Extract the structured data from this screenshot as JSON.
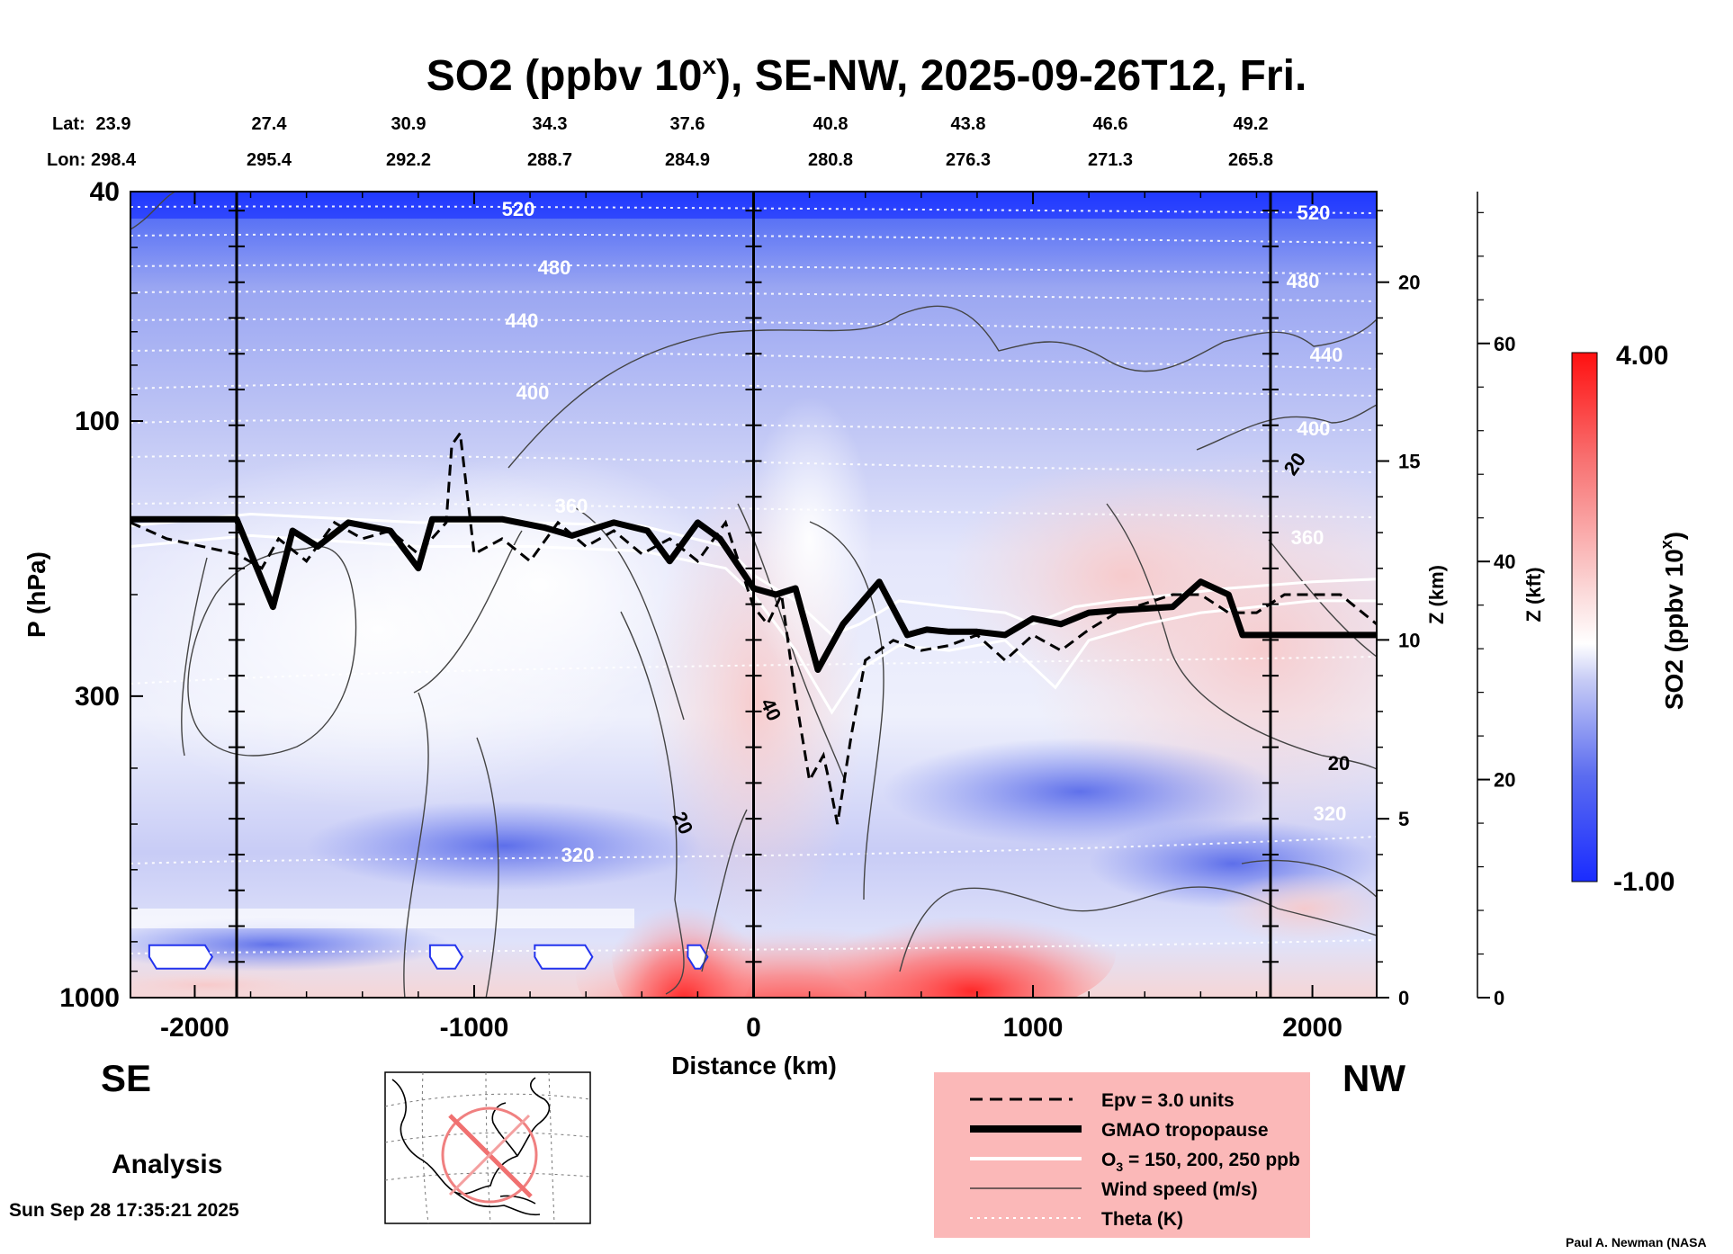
{
  "chart_data": {
    "type": "heatmap",
    "title_main": "SO2 (ppbv 10",
    "title_sup": "x",
    "title_rest": "), SE-NW, 2025-09-26T12, Fri.",
    "lat_label": "Lat:",
    "lon_label": "Lon:",
    "lat_ticks": [
      "23.9",
      "27.4",
      "30.9",
      "34.3",
      "37.6",
      "40.8",
      "43.8",
      "46.6",
      "49.2"
    ],
    "lon_ticks": [
      "298.4",
      "295.4",
      "292.2",
      "288.7",
      "284.9",
      "280.8",
      "276.3",
      "271.3",
      "265.8"
    ],
    "xlabel": "Distance (km)",
    "x_ticks": [
      "-2000",
      "-1000",
      "0",
      "1000",
      "2000"
    ],
    "xlim": [
      -2230,
      2230
    ],
    "ylabel": "P (hPa)",
    "y_ticks": [
      "40",
      "100",
      "300",
      "1000"
    ],
    "ylim": [
      1000,
      40
    ],
    "y_scale": "log",
    "z_km_label": "Z (km)",
    "z_km_ticks": [
      "20",
      "15",
      "10",
      "5",
      "0"
    ],
    "z_kft_label": "Z (kft)",
    "z_kft_ticks": [
      "60",
      "40",
      "20",
      "0"
    ],
    "vertical_lines_km": [
      -1850,
      0,
      1850
    ],
    "left_corner_label": "SE",
    "right_corner_label": "NW",
    "analysis_label": "Analysis",
    "colorbar": {
      "label_main": "SO2 (ppbv 10",
      "label_sup": "x",
      "label_end": ")",
      "max_label": "4.00",
      "min_label": "-1.00",
      "low_color": "#1a2cff",
      "mid_color": "#ffffff",
      "high_color": "#ff1a1a"
    },
    "theta_labels": [
      "520",
      "480",
      "440",
      "400",
      "360",
      "320",
      "520",
      "480",
      "440",
      "400",
      "360",
      "320"
    ],
    "wind_labels": [
      "20",
      "40",
      "20",
      "20"
    ],
    "legend": {
      "items": [
        {
          "label": "Epv = 3.0 units",
          "style": "dashed"
        },
        {
          "label": "GMAO tropopause",
          "style": "thick"
        },
        {
          "label": "O",
          "sub": "3",
          "rest": " = 150, 200, 250 ppb",
          "style": "white"
        },
        {
          "label": "Wind speed (m/s)",
          "style": "thin"
        },
        {
          "label": "Theta (K)",
          "style": "dotted"
        }
      ],
      "bg_color": "#fbb8b8"
    },
    "tropopause": {
      "x": [
        -2230,
        -1850,
        -1720,
        -1650,
        -1560,
        -1450,
        -1300,
        -1200,
        -1150,
        -1100,
        -900,
        -750,
        -650,
        -500,
        -380,
        -300,
        -200,
        -120,
        0,
        80,
        150,
        230,
        320,
        450,
        550,
        620,
        700,
        800,
        900,
        1000,
        1100,
        1200,
        1300,
        1500,
        1600,
        1700,
        1750,
        2230
      ],
      "p": [
        148,
        148,
        210,
        155,
        165,
        150,
        155,
        180,
        148,
        148,
        148,
        153,
        158,
        150,
        155,
        175,
        150,
        160,
        195,
        200,
        195,
        270,
        225,
        190,
        235,
        230,
        232,
        232,
        235,
        220,
        225,
        215,
        213,
        210,
        190,
        200,
        235,
        235
      ]
    },
    "epv_3": {
      "x": [
        -2230,
        -2100,
        -1850,
        -1760,
        -1700,
        -1600,
        -1500,
        -1400,
        -1300,
        -1200,
        -1100,
        -1080,
        -1050,
        -1000,
        -900,
        -800,
        -700,
        -600,
        -500,
        -400,
        -300,
        -200,
        -100,
        0,
        50,
        100,
        150,
        200,
        250,
        270,
        300,
        350,
        400,
        500,
        600,
        700,
        800,
        900,
        1000,
        1100,
        1200,
        1300,
        1500,
        1600,
        1700,
        1800,
        1900,
        2000,
        2100,
        2230
      ],
      "p": [
        150,
        160,
        170,
        180,
        160,
        175,
        150,
        160,
        155,
        170,
        150,
        110,
        105,
        170,
        160,
        175,
        150,
        165,
        155,
        170,
        160,
        175,
        150,
        210,
        225,
        200,
        300,
        420,
        380,
        420,
        500,
        350,
        260,
        240,
        250,
        245,
        235,
        260,
        235,
        250,
        230,
        215,
        200,
        200,
        215,
        215,
        200,
        200,
        200,
        225
      ]
    },
    "o3_contours": [
      {
        "x": [
          -2230,
          -1800,
          -1200,
          -800,
          -400,
          -100,
          0,
          150,
          280,
          380,
          520,
          700,
          900,
          1000,
          1150,
          1300,
          1500,
          1700,
          2000,
          2230
        ],
        "p": [
          152,
          145,
          150,
          150,
          152,
          165,
          185,
          205,
          235,
          225,
          205,
          210,
          215,
          225,
          210,
          205,
          200,
          195,
          190,
          188
        ]
      },
      {
        "x": [
          -2230,
          -1800,
          -1200,
          -800,
          -400,
          -100,
          0,
          150,
          280,
          380,
          520,
          700,
          900,
          1080,
          1200,
          1400,
          1600,
          1800,
          2000,
          2230
        ],
        "p": [
          165,
          158,
          165,
          165,
          168,
          180,
          200,
          250,
          320,
          270,
          245,
          250,
          240,
          290,
          240,
          225,
          215,
          210,
          205,
          205
        ]
      }
    ],
    "hot_spots_km": [
      -2050,
      -1100,
      -680,
      -200
    ],
    "generated_stamp": "Sun Sep 28 17:35:21 2025",
    "author_credit": "Paul A. Newman (NASA"
  }
}
